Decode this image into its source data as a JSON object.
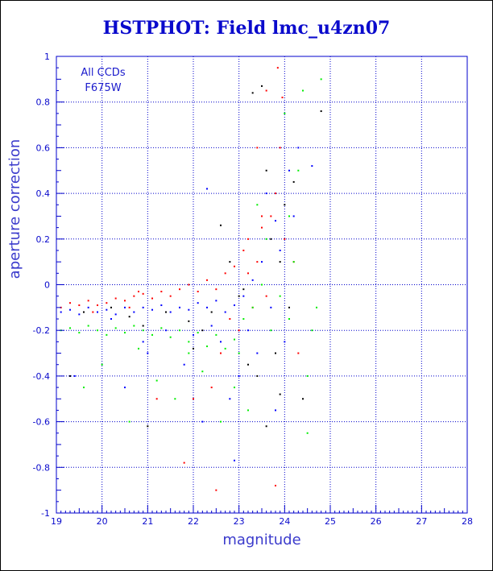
{
  "title": "HSTPHOT: Field lmc_u4zn07",
  "chart_data": {
    "type": "scatter",
    "title": "HSTPHOT: Field lmc_u4zn07",
    "xlabel": "magnitude",
    "ylabel": "aperture correction",
    "xlim": [
      19,
      28
    ],
    "ylim": [
      -1,
      1
    ],
    "x_ticks": [
      "19",
      "20",
      "21",
      "22",
      "23",
      "24",
      "25",
      "26",
      "27",
      "28"
    ],
    "y_ticks": [
      "-1",
      "-0.8",
      "-0.6",
      "-0.4",
      "-0.2",
      "0",
      "0.2",
      "0.4",
      "0.6",
      "0.8",
      "1"
    ],
    "grid": true,
    "annotations": [
      "All CCDs",
      "F675W"
    ],
    "series": [
      {
        "color": "#ff0000",
        "points": [
          [
            19.1,
            -0.1
          ],
          [
            19.3,
            -0.08
          ],
          [
            19.5,
            -0.09
          ],
          [
            19.7,
            -0.07
          ],
          [
            19.9,
            -0.09
          ],
          [
            20.1,
            -0.08
          ],
          [
            20.3,
            -0.06
          ],
          [
            20.5,
            -0.07
          ],
          [
            20.7,
            -0.05
          ],
          [
            20.9,
            -0.04
          ],
          [
            21.1,
            -0.06
          ],
          [
            21.3,
            -0.03
          ],
          [
            21.5,
            -0.05
          ],
          [
            21.7,
            -0.02
          ],
          [
            21.9,
            0.0
          ],
          [
            22.1,
            -0.03
          ],
          [
            22.3,
            0.02
          ],
          [
            22.5,
            -0.02
          ],
          [
            22.7,
            0.05
          ],
          [
            22.9,
            0.08
          ],
          [
            23.1,
            0.15
          ],
          [
            23.2,
            0.2
          ],
          [
            23.4,
            0.1
          ],
          [
            23.5,
            0.25
          ],
          [
            23.6,
            -0.05
          ],
          [
            23.7,
            0.3
          ],
          [
            23.8,
            0.4
          ],
          [
            23.9,
            0.6
          ],
          [
            23.85,
            0.95
          ],
          [
            23.95,
            0.82
          ],
          [
            23.6,
            0.85
          ],
          [
            23.3,
            -0.1
          ],
          [
            23.0,
            -0.2
          ],
          [
            22.6,
            -0.3
          ],
          [
            22.4,
            -0.45
          ],
          [
            22.0,
            -0.5
          ],
          [
            21.8,
            -0.78
          ],
          [
            22.5,
            -0.9
          ],
          [
            23.8,
            -0.88
          ],
          [
            24.3,
            -0.3
          ],
          [
            24.2,
            0.1
          ],
          [
            23.4,
            0.6
          ],
          [
            23.5,
            0.3
          ],
          [
            24.0,
            0.2
          ],
          [
            21.2,
            -0.5
          ],
          [
            20.8,
            -0.03
          ],
          [
            20.6,
            -0.1
          ],
          [
            19.8,
            -0.12
          ],
          [
            22.8,
            -0.15
          ],
          [
            23.2,
            0.05
          ]
        ]
      },
      {
        "color": "#0000ff",
        "points": [
          [
            19.1,
            -0.12
          ],
          [
            19.3,
            -0.11
          ],
          [
            19.5,
            -0.13
          ],
          [
            19.7,
            -0.1
          ],
          [
            19.9,
            -0.12
          ],
          [
            20.1,
            -0.11
          ],
          [
            20.3,
            -0.13
          ],
          [
            20.5,
            -0.1
          ],
          [
            20.7,
            -0.12
          ],
          [
            20.9,
            -0.1
          ],
          [
            21.1,
            -0.11
          ],
          [
            21.3,
            -0.09
          ],
          [
            21.5,
            -0.12
          ],
          [
            21.7,
            -0.1
          ],
          [
            21.9,
            -0.11
          ],
          [
            22.1,
            -0.08
          ],
          [
            22.3,
            -0.1
          ],
          [
            22.5,
            -0.07
          ],
          [
            22.7,
            -0.12
          ],
          [
            22.9,
            -0.09
          ],
          [
            23.1,
            -0.05
          ],
          [
            23.3,
            0.02
          ],
          [
            23.5,
            0.1
          ],
          [
            23.7,
            -0.1
          ],
          [
            23.9,
            0.15
          ],
          [
            23.6,
            0.4
          ],
          [
            24.1,
            0.5
          ],
          [
            24.2,
            0.3
          ],
          [
            23.4,
            -0.3
          ],
          [
            23.0,
            -0.4
          ],
          [
            22.8,
            -0.5
          ],
          [
            22.6,
            -0.25
          ],
          [
            21.8,
            -0.35
          ],
          [
            21.0,
            -0.3
          ],
          [
            20.5,
            -0.45
          ],
          [
            19.4,
            -0.4
          ],
          [
            22.2,
            -0.6
          ],
          [
            24.0,
            -0.25
          ],
          [
            24.3,
            0.6
          ],
          [
            23.8,
            0.28
          ],
          [
            22.3,
            0.42
          ],
          [
            21.4,
            -0.2
          ],
          [
            20.2,
            -0.15
          ],
          [
            22.0,
            -0.22
          ],
          [
            23.2,
            -0.2
          ],
          [
            23.8,
            -0.55
          ],
          [
            22.9,
            -0.77
          ],
          [
            24.6,
            0.52
          ],
          [
            20.9,
            -0.25
          ],
          [
            22.4,
            -0.18
          ]
        ]
      },
      {
        "color": "#00ee00",
        "points": [
          [
            19.1,
            -0.2
          ],
          [
            19.3,
            -0.19
          ],
          [
            19.5,
            -0.21
          ],
          [
            19.7,
            -0.18
          ],
          [
            19.9,
            -0.2
          ],
          [
            20.1,
            -0.22
          ],
          [
            20.3,
            -0.19
          ],
          [
            20.5,
            -0.21
          ],
          [
            20.7,
            -0.18
          ],
          [
            20.9,
            -0.2
          ],
          [
            21.1,
            -0.22
          ],
          [
            21.3,
            -0.19
          ],
          [
            21.5,
            -0.23
          ],
          [
            21.7,
            -0.2
          ],
          [
            21.9,
            -0.25
          ],
          [
            22.1,
            -0.21
          ],
          [
            22.3,
            -0.27
          ],
          [
            22.5,
            -0.22
          ],
          [
            22.7,
            -0.28
          ],
          [
            22.9,
            -0.24
          ],
          [
            23.1,
            -0.15
          ],
          [
            23.3,
            -0.1
          ],
          [
            23.5,
            0.0
          ],
          [
            23.7,
            -0.2
          ],
          [
            23.9,
            -0.05
          ],
          [
            24.1,
            0.3
          ],
          [
            24.3,
            0.5
          ],
          [
            24.0,
            0.75
          ],
          [
            24.4,
            0.85
          ],
          [
            24.8,
            0.9
          ],
          [
            24.5,
            -0.4
          ],
          [
            24.6,
            -0.2
          ],
          [
            23.2,
            -0.55
          ],
          [
            22.6,
            -0.6
          ],
          [
            21.6,
            -0.5
          ],
          [
            20.6,
            -0.6
          ],
          [
            19.6,
            -0.45
          ],
          [
            20.0,
            -0.35
          ],
          [
            21.2,
            -0.42
          ],
          [
            22.2,
            -0.38
          ],
          [
            23.0,
            -0.3
          ],
          [
            23.6,
            0.2
          ],
          [
            24.2,
            0.1
          ],
          [
            24.5,
            -0.65
          ],
          [
            22.9,
            -0.45
          ],
          [
            21.9,
            -0.3
          ],
          [
            20.8,
            -0.28
          ],
          [
            23.4,
            0.35
          ],
          [
            24.1,
            -0.15
          ],
          [
            24.7,
            -0.1
          ]
        ]
      },
      {
        "color": "#000000",
        "points": [
          [
            19.6,
            -0.12
          ],
          [
            20.6,
            -0.14
          ],
          [
            21.0,
            -0.62
          ],
          [
            21.9,
            -0.16
          ],
          [
            22.4,
            -0.12
          ],
          [
            22.6,
            0.26
          ],
          [
            23.0,
            -0.05
          ],
          [
            23.3,
            0.84
          ],
          [
            23.5,
            0.87
          ],
          [
            23.6,
            0.5
          ],
          [
            23.7,
            0.2
          ],
          [
            23.8,
            -0.3
          ],
          [
            23.9,
            0.1
          ],
          [
            24.0,
            0.35
          ],
          [
            24.1,
            -0.1
          ],
          [
            24.2,
            0.45
          ],
          [
            24.8,
            0.76
          ],
          [
            23.4,
            -0.4
          ],
          [
            23.1,
            -0.02
          ],
          [
            22.8,
            0.1
          ],
          [
            22.2,
            -0.2
          ],
          [
            21.4,
            -0.12
          ],
          [
            20.2,
            -0.1
          ],
          [
            19.3,
            -0.4
          ],
          [
            23.2,
            -0.35
          ],
          [
            24.4,
            -0.5
          ],
          [
            23.6,
            -0.62
          ],
          [
            22.0,
            -0.28
          ],
          [
            20.9,
            -0.18
          ],
          [
            23.9,
            -0.48
          ]
        ]
      }
    ]
  }
}
